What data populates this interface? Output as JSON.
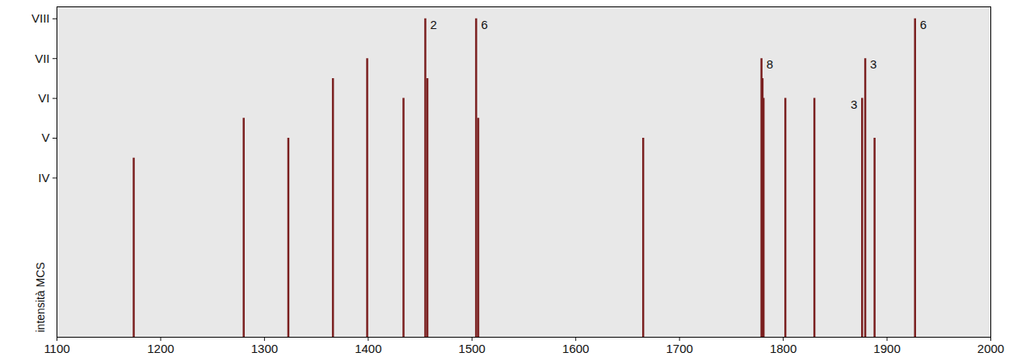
{
  "chart_data": {
    "type": "bar",
    "y_label": "intensità MCS",
    "x": [
      1174,
      1280,
      1323,
      1366,
      1399,
      1434,
      1455,
      1457,
      1504,
      1506,
      1665,
      1779,
      1780,
      1781,
      1802,
      1830,
      1876,
      1879,
      1888,
      1927
    ],
    "values": [
      4.5,
      5.5,
      5,
      6.5,
      7,
      6,
      8,
      6.5,
      8,
      5.5,
      5,
      7,
      6.5,
      6,
      6,
      6,
      6,
      7,
      5,
      8
    ],
    "color": "#7a1f1f",
    "xlim": [
      1100,
      2000
    ],
    "xticks": [
      1100,
      1200,
      1300,
      1400,
      1500,
      1600,
      1700,
      1800,
      1900,
      2000
    ],
    "ylim": [
      0,
      8.3
    ],
    "yticks": [
      {
        "value": 4,
        "label": "IV"
      },
      {
        "value": 5,
        "label": "V"
      },
      {
        "value": 6,
        "label": "VI"
      },
      {
        "value": 7,
        "label": "VII"
      },
      {
        "value": 8,
        "label": "VIII"
      }
    ],
    "annotations": [
      {
        "x": 1455,
        "y": 8,
        "text": "2"
      },
      {
        "x": 1504,
        "y": 8,
        "text": "6"
      },
      {
        "x": 1779,
        "y": 7,
        "text": "8"
      },
      {
        "x": 1876,
        "y": 6,
        "text": "3"
      },
      {
        "x": 1879,
        "y": 7,
        "text": "3"
      },
      {
        "x": 1927,
        "y": 8,
        "text": "6"
      }
    ]
  }
}
